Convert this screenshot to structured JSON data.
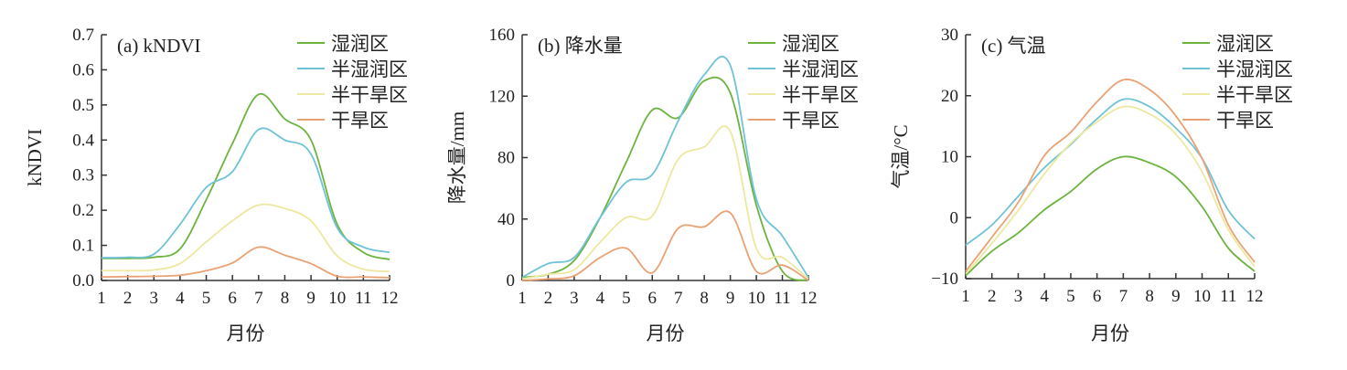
{
  "chart_data": [
    {
      "type": "line",
      "title": "(a) kNDVI",
      "xlabel": "月份",
      "ylabel": "kNDVI",
      "x": [
        1,
        2,
        3,
        4,
        5,
        6,
        7,
        8,
        9,
        10,
        11,
        12
      ],
      "xlim": [
        1,
        12
      ],
      "ylim": [
        0,
        0.7
      ],
      "yticks": [
        "0.0",
        "0.1",
        "0.2",
        "0.3",
        "0.4",
        "0.5",
        "0.6",
        "0.7"
      ],
      "grid": false,
      "legend_position": "top-right",
      "series": [
        {
          "name": "湿润区",
          "color": "#6cb33f",
          "values": [
            0.063,
            0.063,
            0.066,
            0.09,
            0.23,
            0.39,
            0.53,
            0.46,
            0.4,
            0.16,
            0.08,
            0.06
          ]
        },
        {
          "name": "半湿润区",
          "color": "#6fc3d6",
          "values": [
            0.065,
            0.066,
            0.075,
            0.16,
            0.265,
            0.31,
            0.43,
            0.4,
            0.36,
            0.15,
            0.095,
            0.08
          ]
        },
        {
          "name": "半干旱区",
          "color": "#ece8a0",
          "values": [
            0.028,
            0.028,
            0.03,
            0.048,
            0.11,
            0.17,
            0.215,
            0.205,
            0.17,
            0.07,
            0.032,
            0.026
          ]
        },
        {
          "name": "干旱区",
          "color": "#e9a274",
          "values": [
            0.01,
            0.011,
            0.012,
            0.015,
            0.028,
            0.05,
            0.095,
            0.072,
            0.048,
            0.012,
            0.01,
            0.008
          ]
        }
      ]
    },
    {
      "type": "line",
      "title": "(b) 降水量",
      "xlabel": "月份",
      "ylabel": "降水量/mm",
      "x": [
        1,
        2,
        3,
        4,
        5,
        6,
        7,
        8,
        9,
        10,
        11,
        12
      ],
      "xlim": [
        1,
        12
      ],
      "ylim": [
        0,
        160
      ],
      "yticks": [
        "0",
        "40",
        "80",
        "120",
        "160"
      ],
      "grid": false,
      "legend_position": "top-right",
      "series": [
        {
          "name": "湿润区",
          "color": "#6cb33f",
          "values": [
            2,
            4,
            13,
            41,
            77,
            111,
            106,
            130,
            122,
            49,
            6,
            0
          ]
        },
        {
          "name": "半湿润区",
          "color": "#6fc3d6",
          "values": [
            2,
            11,
            15,
            41,
            64,
            69,
            104,
            134,
            140,
            53,
            29,
            2
          ]
        },
        {
          "name": "半干旱区",
          "color": "#ece8a0",
          "values": [
            1,
            4,
            7,
            25,
            41,
            42,
            79,
            87,
            97,
            21,
            15,
            1
          ]
        },
        {
          "name": "干旱区",
          "color": "#e9a274",
          "values": [
            0,
            1,
            3,
            15,
            21,
            5,
            34,
            35,
            44,
            6,
            10,
            0
          ]
        }
      ]
    },
    {
      "type": "line",
      "title": "(c) 气温",
      "xlabel": "月份",
      "ylabel": "气温/°C",
      "x": [
        1,
        2,
        3,
        4,
        5,
        6,
        7,
        8,
        9,
        10,
        11,
        12
      ],
      "xlim": [
        1,
        12
      ],
      "ylim": [
        -10,
        30
      ],
      "yticks": [
        "−10",
        "0",
        "10",
        "20",
        "30"
      ],
      "grid": false,
      "legend_position": "top-right",
      "series": [
        {
          "name": "湿润区",
          "color": "#6cb33f",
          "values": [
            -9.5,
            -5.5,
            -2.5,
            1.3,
            4.3,
            8,
            10,
            9,
            6.7,
            1.8,
            -5,
            -8.8
          ]
        },
        {
          "name": "半湿润区",
          "color": "#6fc3d6",
          "values": [
            -4.5,
            -1.2,
            3.5,
            8.2,
            12,
            16.2,
            19.4,
            18.2,
            14.7,
            9.7,
            1.2,
            -3.5
          ]
        },
        {
          "name": "半干旱区",
          "color": "#ece8a0",
          "values": [
            -9.2,
            -4.2,
            1.2,
            7.2,
            12.2,
            15.7,
            18.2,
            17,
            13.7,
            7.5,
            -2,
            -8
          ]
        },
        {
          "name": "干旱区",
          "color": "#e9a274",
          "values": [
            -8.8,
            -3.2,
            2.5,
            10.2,
            14,
            19,
            22.6,
            21,
            16.7,
            9.7,
            -1.2,
            -7.3
          ]
        }
      ]
    }
  ]
}
